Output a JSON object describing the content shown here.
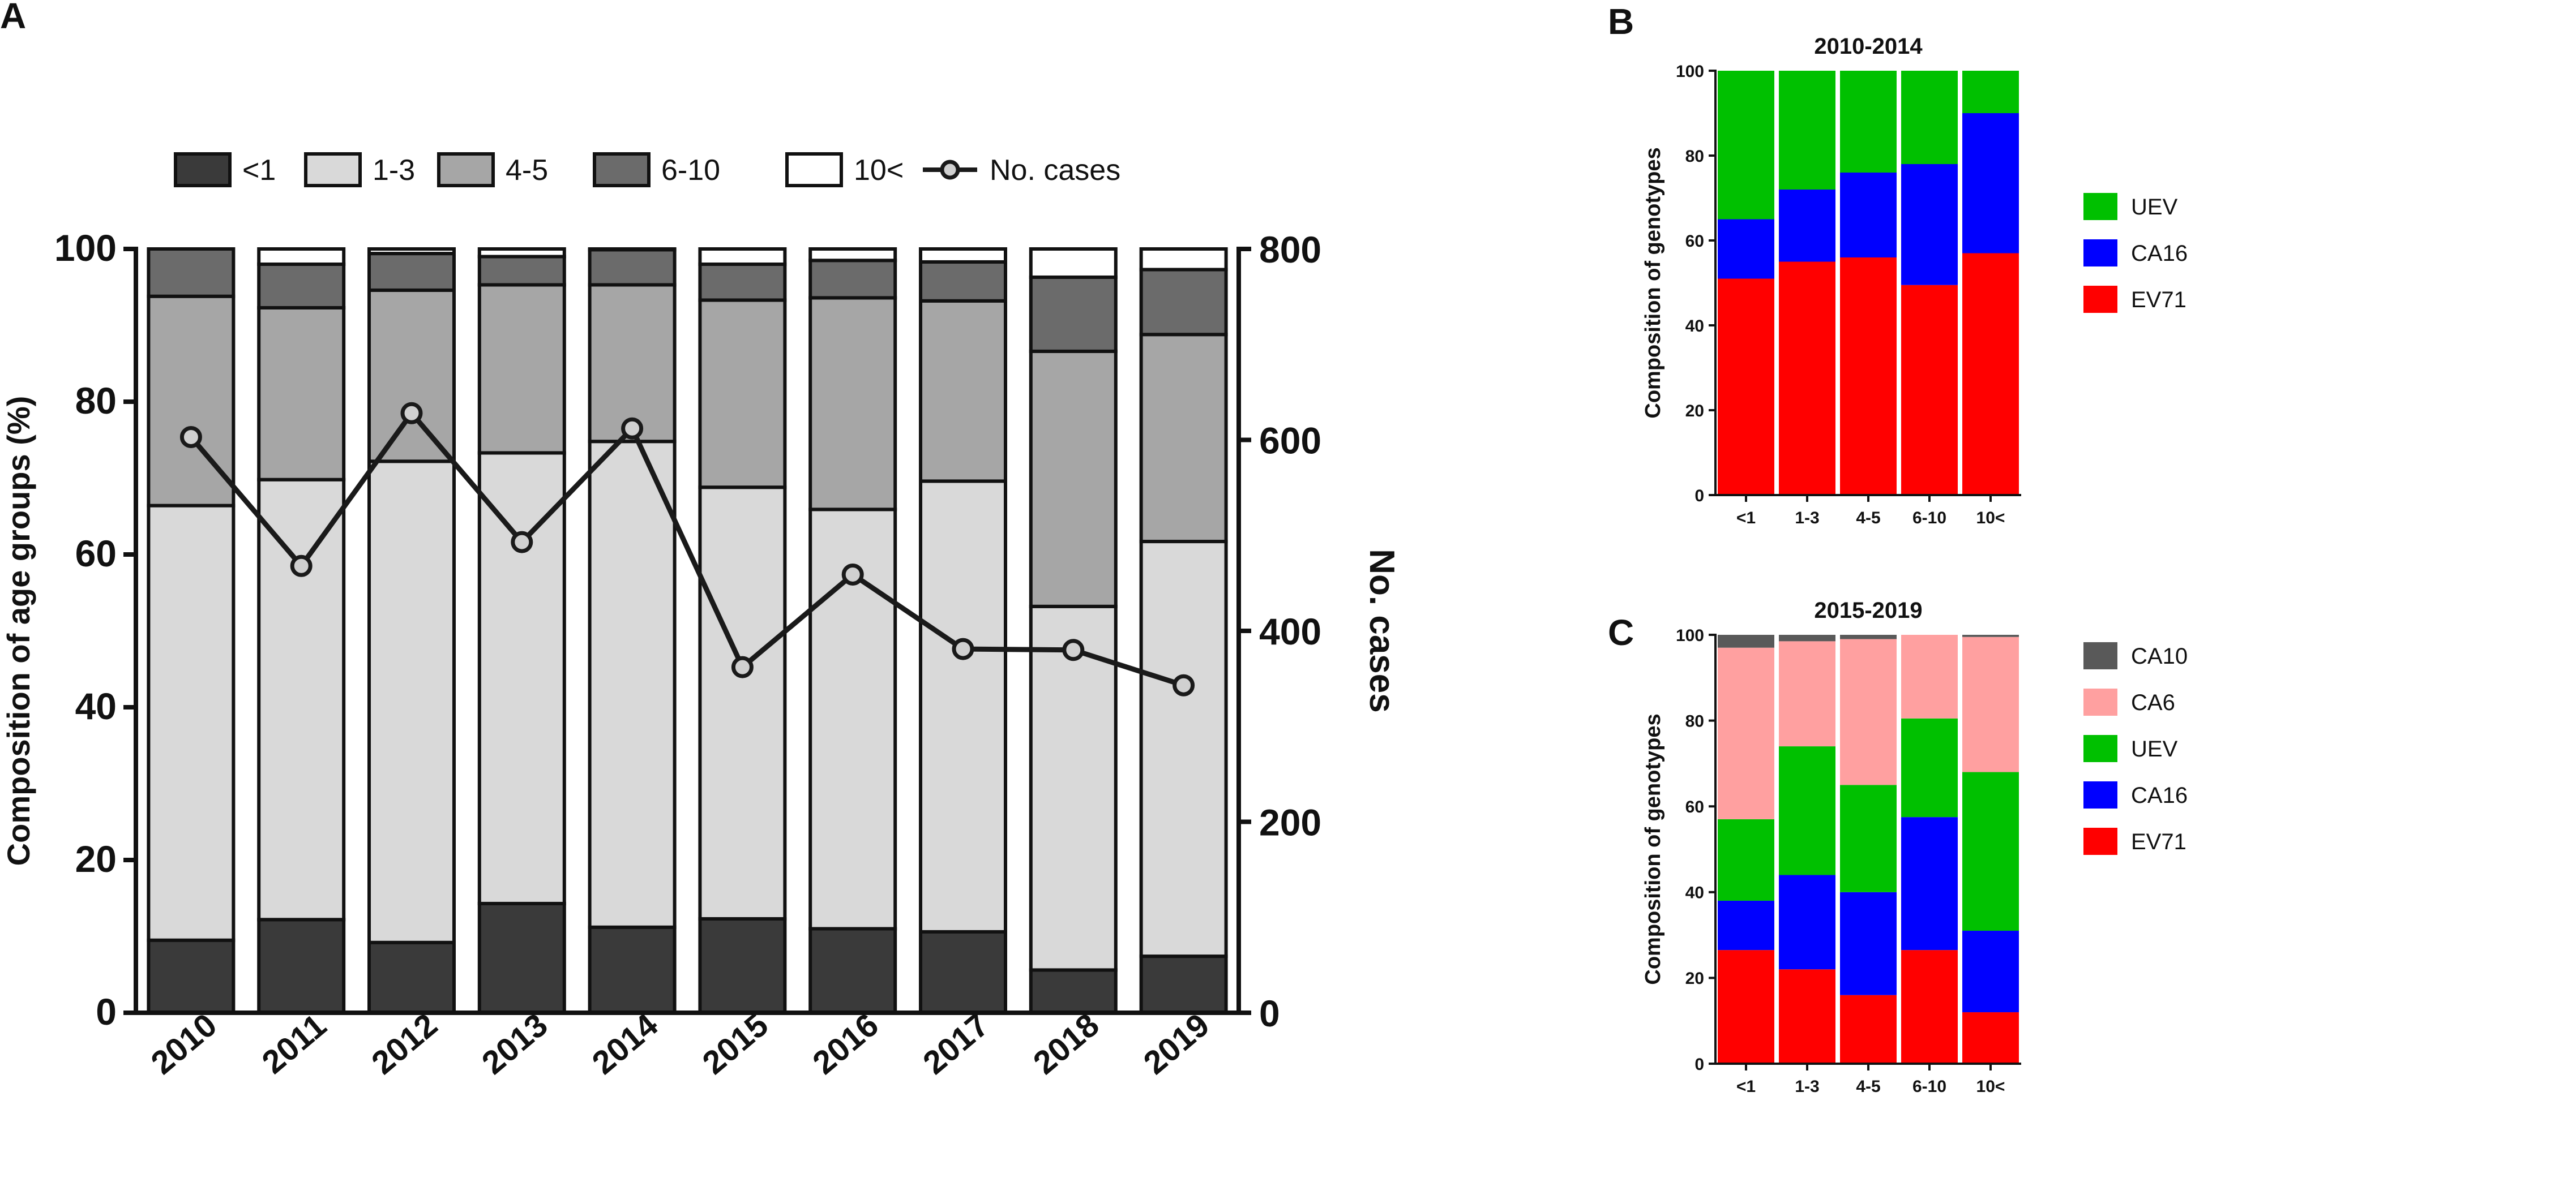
{
  "panels": {
    "a": {
      "letter": "A"
    },
    "b": {
      "letter": "B"
    },
    "c": {
      "letter": "C"
    }
  },
  "chart_data": [
    {
      "id": "a",
      "type": "bar",
      "stacked": true,
      "title": "",
      "xlabel": "",
      "ylabel": "Composition of age groups (%)",
      "y2label": "No. cases",
      "ylim": [
        0,
        100
      ],
      "y2lim": [
        0,
        800
      ],
      "yticks": [
        "0",
        "20",
        "40",
        "60",
        "80",
        "100"
      ],
      "y2ticks": [
        "0",
        "200",
        "400",
        "600",
        "800"
      ],
      "categories": [
        "2010",
        "2011",
        "2012",
        "2013",
        "2014",
        "2015",
        "2016",
        "2017",
        "2018",
        "2019"
      ],
      "legend_position": "top",
      "series": [
        {
          "name": "<1",
          "color": "#3a3a3a",
          "values": [
            9.5,
            12.2,
            9.2,
            14.3,
            11.2,
            12.3,
            11.0,
            10.6,
            5.6,
            7.4
          ]
        },
        {
          "name": "1-3",
          "color": "#d9d9d9",
          "values": [
            56.9,
            57.6,
            63.0,
            59.0,
            63.6,
            56.5,
            54.9,
            59.0,
            47.6,
            54.3
          ]
        },
        {
          "name": "4-5",
          "color": "#a6a6a6",
          "values": [
            27.4,
            22.5,
            22.4,
            22.0,
            20.5,
            24.5,
            27.7,
            23.6,
            33.4,
            27.1
          ]
        },
        {
          "name": "6-10",
          "color": "#6b6b6b",
          "values": [
            6.2,
            5.7,
            4.8,
            3.7,
            4.6,
            4.7,
            4.9,
            5.1,
            9.7,
            8.5
          ]
        },
        {
          "name": "10<",
          "color": "#ffffff",
          "values": [
            0.0,
            2.0,
            0.6,
            1.0,
            0.1,
            2.0,
            1.5,
            1.7,
            3.7,
            2.7
          ]
        }
      ],
      "line_series": {
        "name": "No. cases",
        "color": "#1a1a1a",
        "values": [
          603,
          468,
          628,
          493,
          612,
          362,
          459,
          381,
          380,
          343
        ]
      }
    },
    {
      "id": "b",
      "type": "bar",
      "stacked": true,
      "title": "2010-2014",
      "xlabel": "",
      "ylabel": "Composition of genotypes",
      "ylim": [
        0,
        100
      ],
      "yticks": [
        "0",
        "20",
        "40",
        "60",
        "80",
        "100"
      ],
      "categories": [
        "<1",
        "1-3",
        "4-5",
        "6-10",
        "10<"
      ],
      "legend_position": "right",
      "series": [
        {
          "name": "EV71",
          "color": "#ff0000",
          "values": [
            51,
            55,
            56,
            49.5,
            57
          ]
        },
        {
          "name": "CA16",
          "color": "#0000ff",
          "values": [
            14,
            17,
            20,
            28.5,
            33
          ]
        },
        {
          "name": "UEV",
          "color": "#00c000",
          "values": [
            35,
            28,
            24,
            22,
            10
          ]
        }
      ]
    },
    {
      "id": "c",
      "type": "bar",
      "stacked": true,
      "title": "2015-2019",
      "xlabel": "",
      "ylabel": "Composition of genotypes",
      "ylim": [
        0,
        100
      ],
      "yticks": [
        "0",
        "20",
        "40",
        "60",
        "80",
        "100"
      ],
      "categories": [
        "<1",
        "1-3",
        "4-5",
        "6-10",
        "10<"
      ],
      "legend_position": "right",
      "series": [
        {
          "name": "EV71",
          "color": "#ff0000",
          "values": [
            26.5,
            22,
            16,
            26.5,
            12
          ]
        },
        {
          "name": "CA16",
          "color": "#0000ff",
          "values": [
            11.5,
            22,
            24,
            31,
            19
          ]
        },
        {
          "name": "UEV",
          "color": "#00c000",
          "values": [
            19,
            30,
            25,
            23,
            37
          ]
        },
        {
          "name": "CA6",
          "color": "#ffa0a0",
          "values": [
            40,
            24.5,
            34,
            19.5,
            31.5
          ]
        },
        {
          "name": "CA10",
          "color": "#595959",
          "values": [
            3,
            1.5,
            1,
            0,
            0.5
          ]
        }
      ]
    }
  ]
}
